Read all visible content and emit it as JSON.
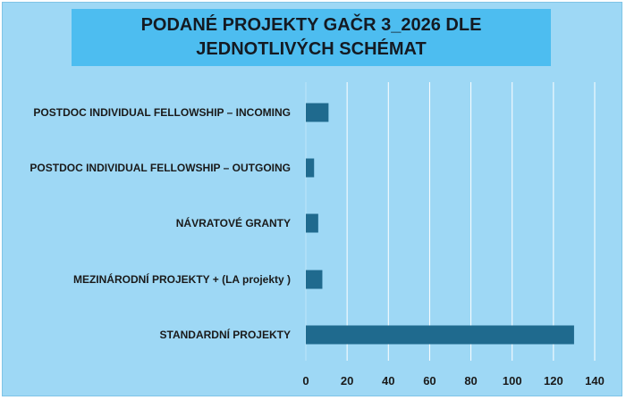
{
  "chart_data": {
    "type": "bar",
    "orientation": "horizontal",
    "title": "PODANÉ PROJEKTY GAČR 3_2026 DLE JEDNOTLIVÝCH SCHÉMAT",
    "categories": [
      "POSTDOC INDIVIDUAL FELLOWSHIP – INCOMING",
      "POSTDOC INDIVIDUAL FELLOWSHIP – OUTGOING",
      "NÁVRATOVÉ GRANTY",
      "MEZINÁRODNÍ PROJEKTY + (LA projekty )",
      "STANDARDNÍ PROJEKTY"
    ],
    "values": [
      11,
      4,
      6,
      8,
      130
    ],
    "xlim": [
      0,
      140
    ],
    "xticks": [
      0,
      20,
      40,
      60,
      80,
      100,
      120,
      140
    ],
    "grid": true,
    "legend": "none",
    "bar_color": "#1f6a8e",
    "background_color": "#9ed8f5",
    "title_box_color": "#4dbdf0",
    "gridline_color": "#ffffff"
  }
}
